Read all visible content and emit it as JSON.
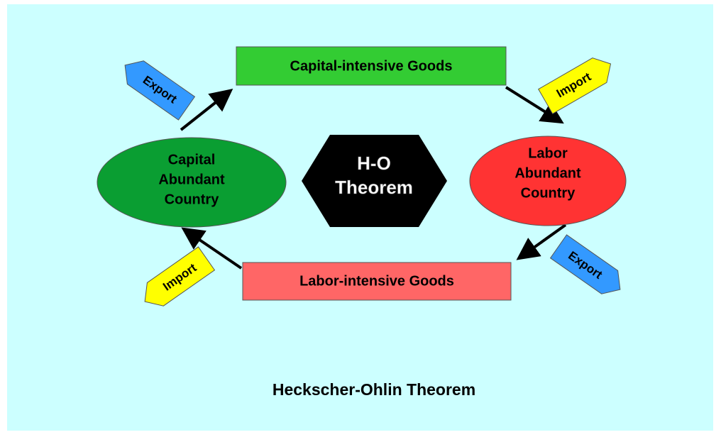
{
  "goods": {
    "capital": "Capital-intensive Goods",
    "labor": "Labor-intensive Goods"
  },
  "countries": {
    "capital": [
      "Capital",
      "Abundant",
      "Country"
    ],
    "labor": [
      "Labor",
      "Abundant",
      "Country"
    ]
  },
  "center": [
    "H-O",
    "Theorem"
  ],
  "tags": [
    "Export",
    "Import",
    "Export",
    "Import"
  ],
  "caption": "Heckscher-Ohlin Theorem"
}
